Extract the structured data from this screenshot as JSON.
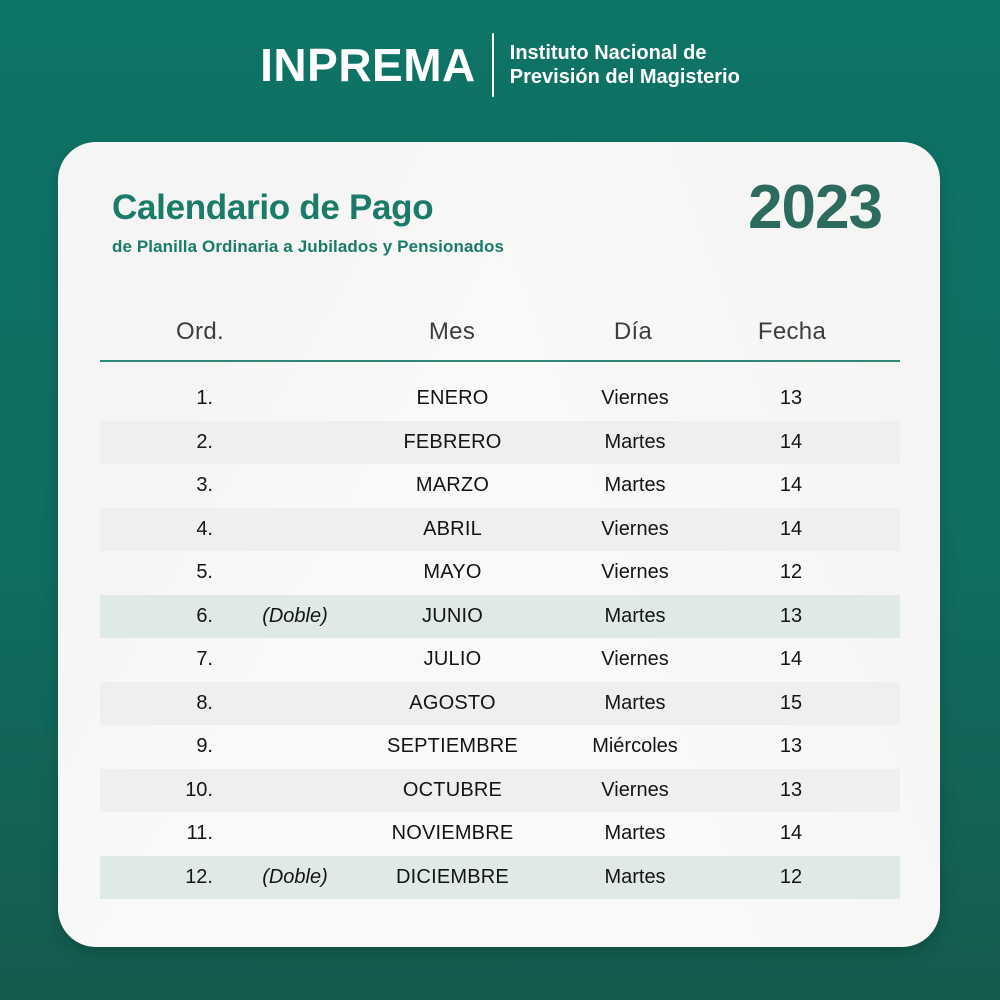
{
  "header": {
    "logo": "INPREMA",
    "org_line1": "Instituto Nacional de",
    "org_line2": "Previsión del Magisterio"
  },
  "card": {
    "title": "Calendario de Pago",
    "subtitle": "de Planilla Ordinaria a Jubilados y Pensionados",
    "year": "2023",
    "table": {
      "columns": [
        "Ord.",
        "Mes",
        "Día",
        "Fecha"
      ],
      "rows": [
        {
          "ord": "1.",
          "note": "",
          "mes": "ENERO",
          "dia": "Viernes",
          "fecha": "13",
          "highlight": "none"
        },
        {
          "ord": "2.",
          "note": "",
          "mes": "FEBRERO",
          "dia": "Martes",
          "fecha": "14",
          "highlight": "gray"
        },
        {
          "ord": "3.",
          "note": "",
          "mes": "MARZO",
          "dia": "Martes",
          "fecha": "14",
          "highlight": "none"
        },
        {
          "ord": "4.",
          "note": "",
          "mes": "ABRIL",
          "dia": "Viernes",
          "fecha": "14",
          "highlight": "gray"
        },
        {
          "ord": "5.",
          "note": "",
          "mes": "MAYO",
          "dia": "Viernes",
          "fecha": "12",
          "highlight": "none"
        },
        {
          "ord": "6.",
          "note": "(Doble)",
          "mes": "JUNIO",
          "dia": "Martes",
          "fecha": "13",
          "highlight": "teal"
        },
        {
          "ord": "7.",
          "note": "",
          "mes": "JULIO",
          "dia": "Viernes",
          "fecha": "14",
          "highlight": "none"
        },
        {
          "ord": "8.",
          "note": "",
          "mes": "AGOSTO",
          "dia": "Martes",
          "fecha": "15",
          "highlight": "gray"
        },
        {
          "ord": "9.",
          "note": "",
          "mes": "SEPTIEMBRE",
          "dia": "Miércoles",
          "fecha": "13",
          "highlight": "none"
        },
        {
          "ord": "10.",
          "note": "",
          "mes": "OCTUBRE",
          "dia": "Viernes",
          "fecha": "13",
          "highlight": "gray"
        },
        {
          "ord": "11.",
          "note": "",
          "mes": "NOVIEMBRE",
          "dia": "Martes",
          "fecha": "14",
          "highlight": "none"
        },
        {
          "ord": "12.",
          "note": "(Doble)",
          "mes": "DICIEMBRE",
          "dia": "Martes",
          "fecha": "12",
          "highlight": "teal"
        }
      ]
    }
  },
  "colors": {
    "background_top": "#0e7466",
    "background_bottom": "#155b4e",
    "card_background": "#f9f9f8",
    "title_teal": "#1a7b6a",
    "year_teal": "#2d6b5e",
    "rule_teal": "#2e8878",
    "row_stripe_gray": "#efefef",
    "row_stripe_teal": "#dfe9e6",
    "header_text": "#3d3d3d",
    "body_text": "#141414",
    "brand_text": "#ffffff"
  }
}
